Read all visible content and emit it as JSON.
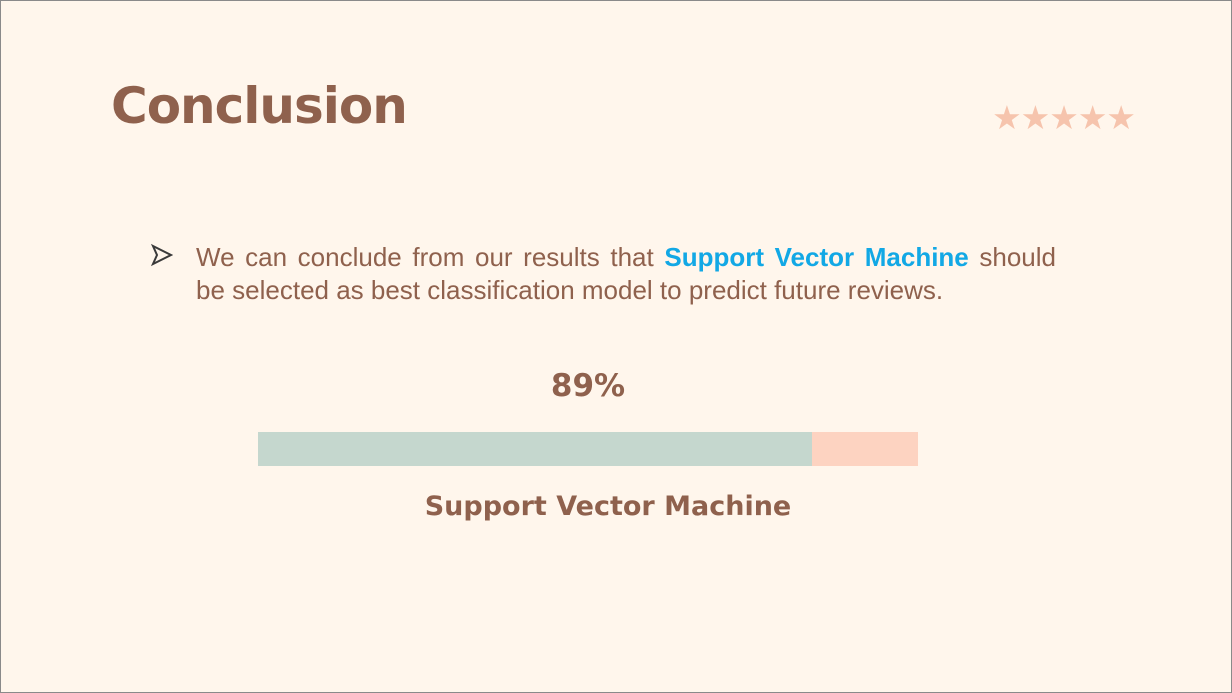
{
  "slide": {
    "title": "Conclusion",
    "rating_stars": "★★★★★",
    "bullet": {
      "icon": "arrow-bullet-icon",
      "text_before": "We can conclude from our results that ",
      "highlight": "Support Vector Machine",
      "text_after": " should be selected as best classification model to predict future reviews."
    },
    "progress": {
      "value_label": "89%",
      "value": 0.89,
      "label": "Support Vector Machine"
    }
  },
  "colors": {
    "background": "#fff6ec",
    "text": "#8f614d",
    "highlight": "#12a8e5",
    "stars": "#f6c4ad",
    "bar_fill": "#c5d7ce",
    "bar_track": "#fdd3c1"
  }
}
